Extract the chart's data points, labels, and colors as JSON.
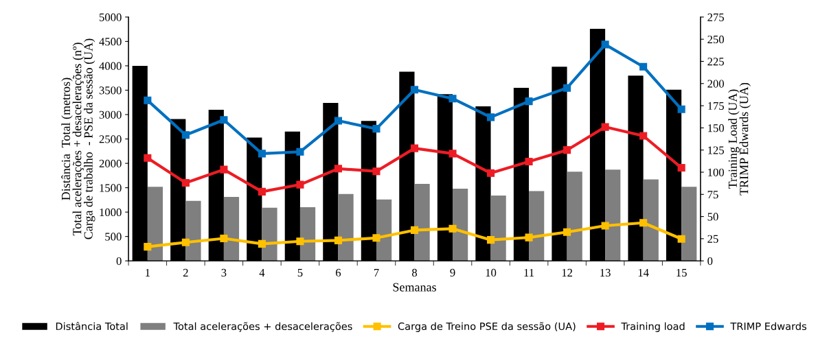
{
  "chart_data": {
    "type": "bar",
    "xlabel": "Semanas",
    "ylabel": "Distância  Total (metros)\nTotal acelerações + desacelerações (nº)\nCarga de trabalho  - PSE da sessão (UA)",
    "y2label": "Training Load (UA)\nTRIMP Edwards (UA)",
    "categories": [
      "1",
      "2",
      "3",
      "4",
      "5",
      "6",
      "7",
      "8",
      "9",
      "10",
      "11",
      "12",
      "13",
      "14",
      "15"
    ],
    "series": [
      {
        "name": "Distância Total",
        "color": "#000000",
        "values": [
          4000,
          2910,
          3100,
          2530,
          2650,
          3240,
          2870,
          3880,
          3420,
          3170,
          3550,
          3980,
          4760,
          3800,
          3510
        ]
      },
      {
        "name": "Total acelerações + desacelerações",
        "color": "#7f7f7f",
        "values": [
          1520,
          1230,
          1310,
          1090,
          1100,
          1370,
          1260,
          1580,
          1480,
          1340,
          1430,
          1830,
          1870,
          1670,
          1520
        ]
      },
      {
        "name": "Carga de Treino PSE da sessão (UA)",
        "type": "line",
        "color": "#ffc000",
        "values": [
          290,
          380,
          460,
          350,
          400,
          420,
          470,
          630,
          660,
          430,
          480,
          590,
          720,
          780,
          450
        ]
      },
      {
        "name": "Training load",
        "type": "line",
        "axis": "y2",
        "color": "#ed1c24",
        "values": [
          116,
          88,
          103,
          78,
          86,
          104,
          101,
          127,
          121,
          99,
          112,
          125,
          151,
          141,
          105
        ]
      },
      {
        "name": "TRIMP Edwards",
        "type": "line",
        "axis": "y2",
        "color": "#0070c0",
        "values": [
          181,
          142,
          159,
          121,
          123,
          158,
          149,
          193,
          183,
          162,
          180,
          195,
          244,
          219,
          171
        ]
      }
    ],
    "ylim": [
      0,
      5000
    ],
    "yticks": [
      0,
      500,
      1000,
      1500,
      2000,
      2500,
      3000,
      3500,
      4000,
      4500,
      5000
    ],
    "y2lim": [
      0,
      275
    ],
    "y2ticks": [
      0,
      25,
      50,
      75,
      100,
      125,
      150,
      175,
      200,
      225,
      250,
      275
    ],
    "marker": "square",
    "line_style": "solid",
    "grid": false,
    "legend": "bottom"
  }
}
